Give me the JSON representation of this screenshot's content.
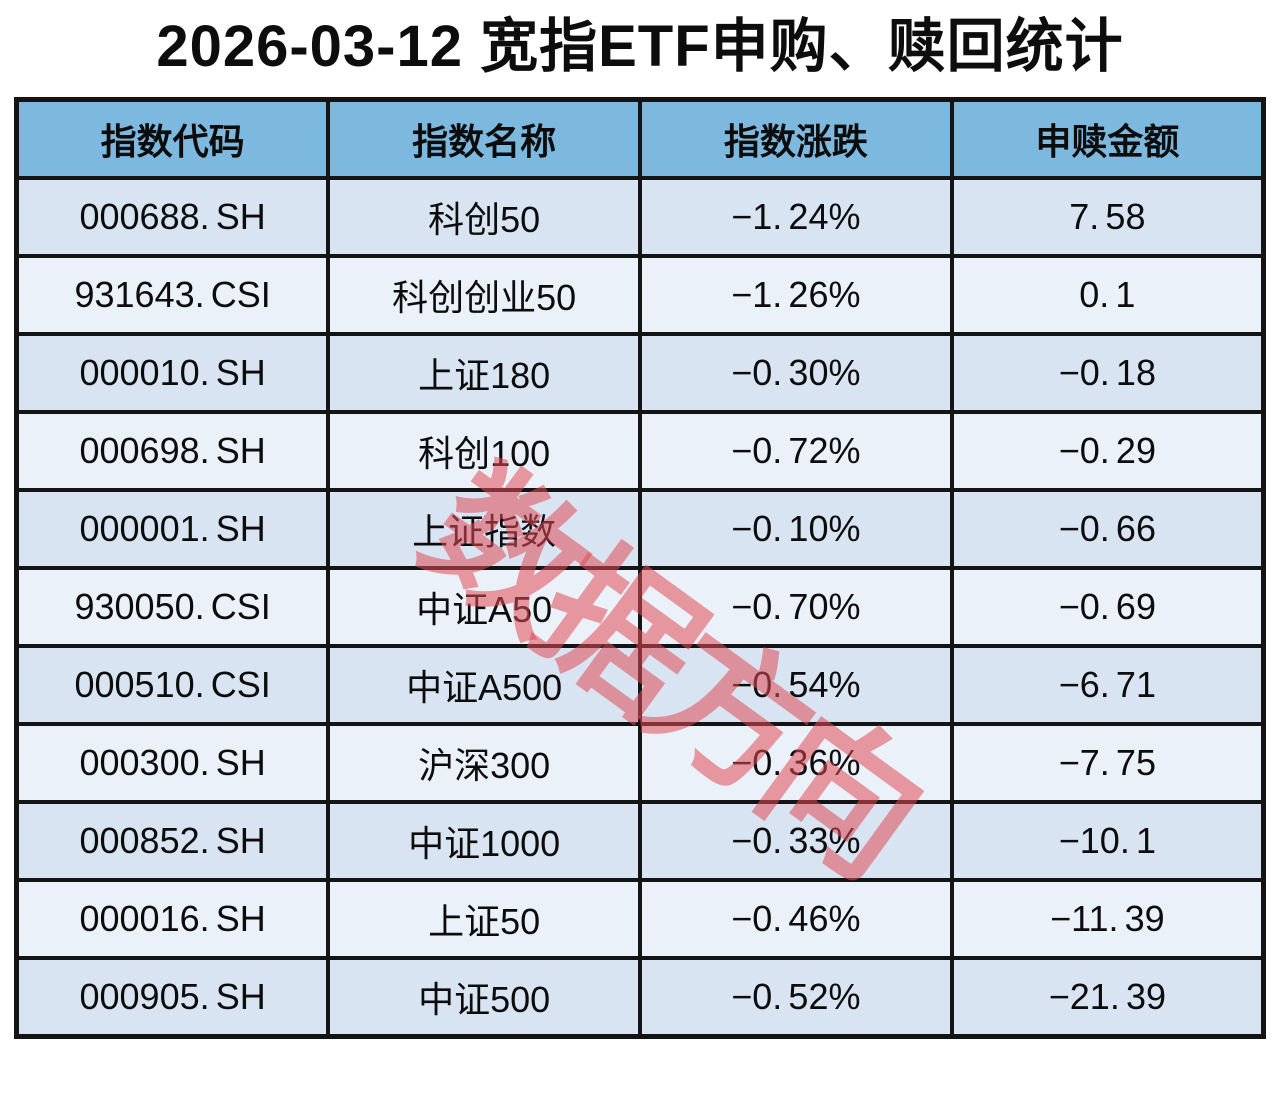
{
  "title": "2026-03-12 宽指ETF申购、赎回统计",
  "watermark": "数据方向",
  "colors": {
    "header_bg": "#7DB9DE",
    "row_odd_bg": "#D8E4F1",
    "row_even_bg": "#EBF1F9",
    "border": "#141414",
    "title_text": "#0D0D0D",
    "cell_text": "#0C0C0C",
    "watermark_red": "rgba(224,74,85,0.55)"
  },
  "table": {
    "columns": [
      "指数代码",
      "指数名称",
      "指数涨跌",
      "申赎金额"
    ]
  },
  "chart_data": {
    "type": "table",
    "title": "2026-03-12 宽指ETF申购、赎回统计",
    "columns": [
      "指数代码",
      "指数名称",
      "指数涨跌",
      "申赎金额"
    ],
    "rows": [
      {
        "code": "000688.SH",
        "name": "科创50",
        "change": "-1.24%",
        "change_pct": -1.24,
        "amount": "7.58",
        "amount_value": 7.58
      },
      {
        "code": "931643.CSI",
        "name": "科创创业50",
        "change": "-1.26%",
        "change_pct": -1.26,
        "amount": "0.1",
        "amount_value": 0.1
      },
      {
        "code": "000010.SH",
        "name": "上证180",
        "change": "-0.30%",
        "change_pct": -0.3,
        "amount": "-0.18",
        "amount_value": -0.18
      },
      {
        "code": "000698.SH",
        "name": "科创100",
        "change": "-0.72%",
        "change_pct": -0.72,
        "amount": "-0.29",
        "amount_value": -0.29
      },
      {
        "code": "000001.SH",
        "name": "上证指数",
        "change": "-0.10%",
        "change_pct": -0.1,
        "amount": "-0.66",
        "amount_value": -0.66
      },
      {
        "code": "930050.CSI",
        "name": "中证A50",
        "change": "-0.70%",
        "change_pct": -0.7,
        "amount": "-0.69",
        "amount_value": -0.69
      },
      {
        "code": "000510.CSI",
        "name": "中证A500",
        "change": "-0.54%",
        "change_pct": -0.54,
        "amount": "-6.71",
        "amount_value": -6.71
      },
      {
        "code": "000300.SH",
        "name": "沪深300",
        "change": "-0.36%",
        "change_pct": -0.36,
        "amount": "-7.75",
        "amount_value": -7.75
      },
      {
        "code": "000852.SH",
        "name": "中证1000",
        "change": "-0.33%",
        "change_pct": -0.33,
        "amount": "-10.1",
        "amount_value": -10.1
      },
      {
        "code": "000016.SH",
        "name": "上证50",
        "change": "-0.46%",
        "change_pct": -0.46,
        "amount": "-11.39",
        "amount_value": -11.39
      },
      {
        "code": "000905.SH",
        "name": "中证500",
        "change": "-0.52%",
        "change_pct": -0.52,
        "amount": "-21.39",
        "amount_value": -21.39
      }
    ],
    "layout": {
      "header_position": "top",
      "grid": true,
      "row_striping": true,
      "watermark": "数据方向",
      "legend_position": "none"
    }
  }
}
